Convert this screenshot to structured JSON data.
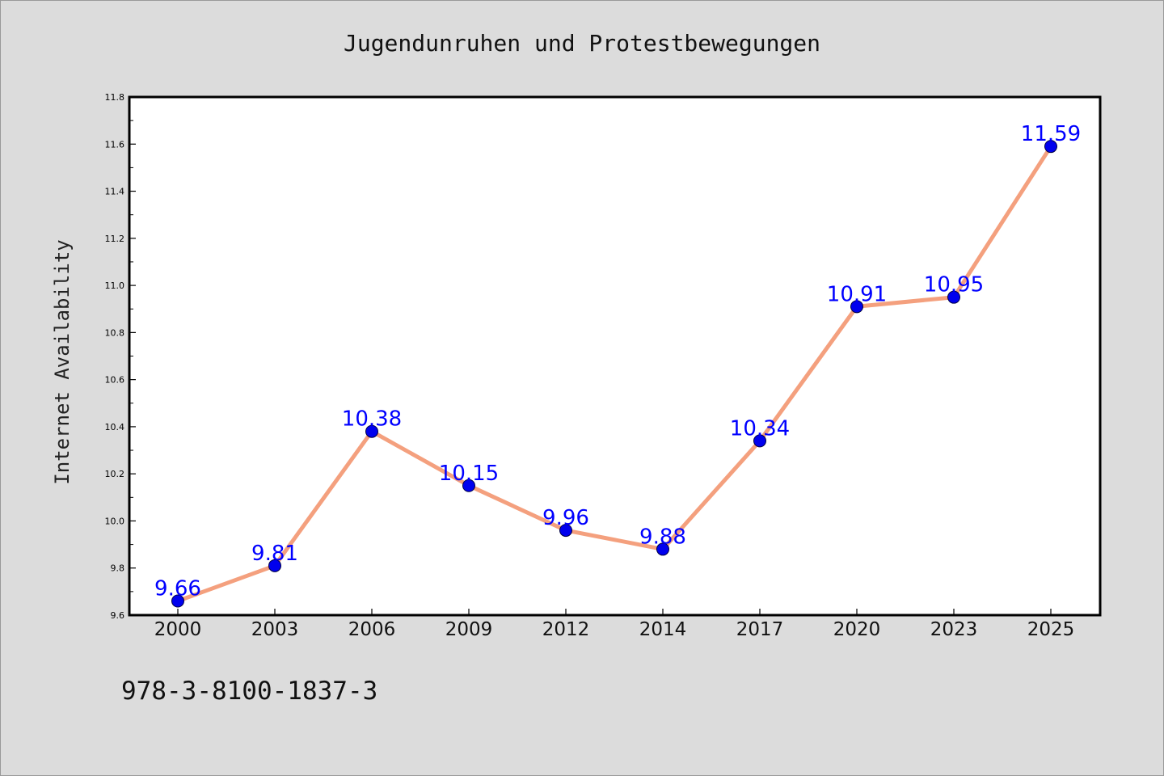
{
  "chart_data": {
    "type": "line",
    "title": "Jugendunruhen und Protestbewegungen",
    "xlabel": "",
    "ylabel": "Internet Availability",
    "categories": [
      "2000",
      "2003",
      "2006",
      "2009",
      "2012",
      "2014",
      "2017",
      "2020",
      "2023",
      "2025"
    ],
    "series": [
      {
        "values": [
          9.66,
          9.81,
          10.38,
          10.15,
          9.96,
          9.88,
          10.34,
          10.91,
          10.95,
          11.59
        ],
        "data_labels": [
          "9.66",
          "9.81",
          "10.38",
          "10.15",
          "9.96",
          "9.88",
          "10.34",
          "10.91",
          "10.95",
          "11.59"
        ]
      }
    ],
    "ylim": [
      9.6,
      11.8
    ],
    "yticks": [
      "9.6",
      "9.8",
      "10.0",
      "10.2",
      "10.4",
      "10.6",
      "10.8",
      "11.0",
      "11.2",
      "11.4",
      "11.6",
      "11.8"
    ],
    "grid": false,
    "colors": {
      "line": "#f4a07e",
      "marker": "#0000ee",
      "data_label": "#0000ff",
      "background": "#dcdcdc",
      "plot_background": "#ffffff"
    }
  },
  "footer_code": "978-3-8100-1837-3"
}
